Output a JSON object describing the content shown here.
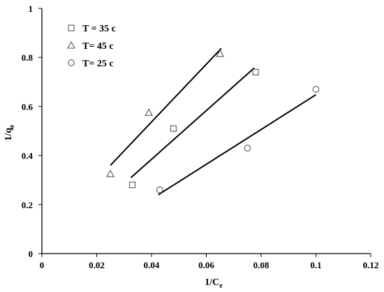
{
  "chart_data": {
    "type": "scatter",
    "xlabel": "1/C",
    "xlabel_sub": "e",
    "ylabel": "1/q",
    "ylabel_sub": "e",
    "xlim": [
      0,
      0.12
    ],
    "ylim": [
      0,
      1
    ],
    "x_ticks": [
      "0",
      "0.02",
      "0.04",
      "0.06",
      "0.08",
      "0.1",
      "0.12"
    ],
    "y_ticks": [
      "0",
      "0.2",
      "0.4",
      "0.6",
      "0.8",
      "1"
    ],
    "grid": false,
    "legend_position": "top-left",
    "series": [
      {
        "name": "T = 35 c",
        "marker": "square",
        "points": [
          [
            0.033,
            0.28
          ],
          [
            0.048,
            0.51
          ],
          [
            0.078,
            0.74
          ]
        ],
        "trendline": [
          [
            0.0325,
            0.31
          ],
          [
            0.0775,
            0.757
          ]
        ]
      },
      {
        "name": "T= 45 c",
        "marker": "triangle",
        "points": [
          [
            0.025,
            0.325
          ],
          [
            0.039,
            0.575
          ],
          [
            0.065,
            0.815
          ]
        ],
        "trendline": [
          [
            0.025,
            0.36
          ],
          [
            0.0655,
            0.837
          ]
        ]
      },
      {
        "name": "T= 25 c",
        "marker": "circle",
        "points": [
          [
            0.043,
            0.26
          ],
          [
            0.075,
            0.43
          ],
          [
            0.1,
            0.67
          ]
        ],
        "trendline": [
          [
            0.0425,
            0.24
          ],
          [
            0.1,
            0.648
          ]
        ]
      }
    ]
  }
}
